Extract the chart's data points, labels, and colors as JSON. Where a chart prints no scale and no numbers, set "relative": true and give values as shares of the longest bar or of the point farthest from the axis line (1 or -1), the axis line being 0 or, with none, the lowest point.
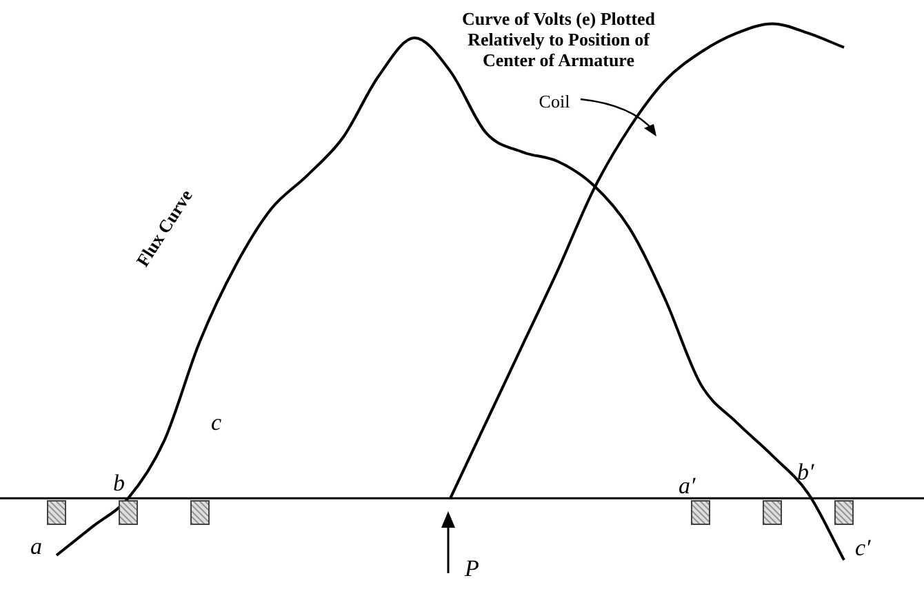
{
  "chart_data": {
    "type": "line",
    "relative": true,
    "legend": false,
    "tick_labels": false,
    "marker": "none",
    "categories": [
      null,
      null,
      null,
      null,
      null,
      null,
      null,
      null,
      null,
      null,
      null,
      null,
      null,
      null,
      null,
      null,
      null,
      null,
      null,
      null,
      null,
      null,
      null
    ],
    "series": [
      {
        "name": "Flux Curve",
        "color": "#000000",
        "values": [
          -0.12,
          -0.06,
          0,
          0.12,
          0.33,
          0.49,
          0.61,
          0.68,
          0.76,
          0.89,
          0.97,
          0.9,
          0.77,
          0.73,
          0.71,
          0.66,
          0.57,
          0.42,
          0.24,
          0.16,
          0.09,
          0.01,
          -0.13
        ]
      },
      {
        "name": "Curve of Volts (e) Plotted Relatively to Position of Center of Armature Coil",
        "color": "#000000",
        "values": [
          null,
          null,
          null,
          null,
          null,
          null,
          null,
          null,
          null,
          null,
          null,
          0,
          0.16,
          0.32,
          0.48,
          0.65,
          0.78,
          0.88,
          0.94,
          0.98,
          1,
          0.98,
          0.95
        ]
      }
    ],
    "annotations": [
      "a",
      "b",
      "c",
      "a′",
      "b′",
      "c′",
      "P"
    ]
  }
}
